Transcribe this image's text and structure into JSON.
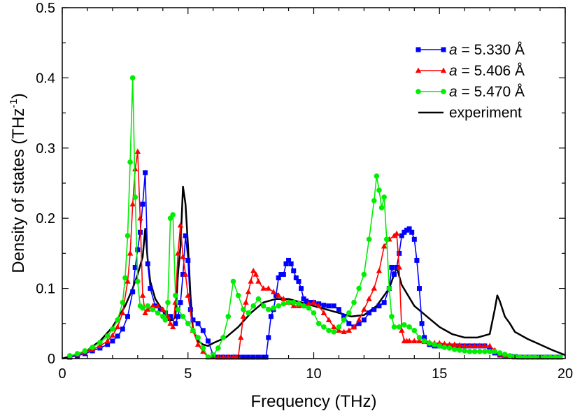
{
  "chart_data": {
    "type": "line",
    "title": "",
    "xlabel": "Frequency (THz)",
    "ylabel_prefix": "Density of states (THz",
    "ylabel_sup": "-1",
    "ylabel_suffix": ")",
    "xlim": [
      0,
      20
    ],
    "ylim": [
      0,
      0.5
    ],
    "xticks": [
      0,
      5,
      10,
      15,
      20
    ],
    "xtick_labels": [
      "0",
      "5",
      "10",
      "15",
      "20"
    ],
    "yticks": [
      0,
      0.1,
      0.2,
      0.3,
      0.4,
      0.5
    ],
    "ytick_labels": [
      "0",
      "0.1",
      "0.2",
      "0.3",
      "0.4",
      "0.5"
    ],
    "grid": false,
    "legend_position": "top-right",
    "series": [
      {
        "name_italic": "a",
        "name_rest": " = 5.330 Å",
        "color": "#0000ff",
        "marker": "square",
        "x": [
          0.3,
          0.6,
          0.9,
          1.2,
          1.5,
          1.8,
          2.0,
          2.2,
          2.4,
          2.6,
          2.8,
          2.9,
          3.0,
          3.1,
          3.2,
          3.3,
          3.4,
          3.5,
          3.7,
          3.9,
          4.1,
          4.3,
          4.5,
          4.6,
          4.7,
          4.8,
          4.9,
          5.0,
          5.1,
          5.2,
          5.4,
          5.6,
          5.8,
          6.0,
          6.2,
          6.4,
          6.6,
          6.8,
          7.0,
          7.2,
          7.4,
          7.6,
          7.8,
          8.0,
          8.1,
          8.2,
          8.3,
          8.4,
          8.5,
          8.6,
          8.7,
          8.8,
          8.9,
          9.0,
          9.1,
          9.2,
          9.3,
          9.4,
          9.5,
          9.6,
          9.7,
          9.8,
          9.9,
          10.0,
          10.2,
          10.4,
          10.6,
          10.8,
          11.0,
          11.2,
          11.4,
          11.6,
          11.8,
          12.0,
          12.2,
          12.4,
          12.6,
          12.8,
          13.0,
          13.1,
          13.2,
          13.3,
          13.4,
          13.5,
          13.6,
          13.7,
          13.8,
          13.9,
          14.0,
          14.1,
          14.2,
          14.3,
          14.4,
          14.6,
          14.8,
          15.0,
          15.2,
          15.4,
          15.6,
          15.8,
          16.0,
          16.2,
          16.4,
          16.6,
          16.8,
          17.0,
          17.2,
          17.4,
          17.6,
          17.8,
          18.0,
          18.2,
          18.4,
          18.6,
          18.8,
          19.0,
          19.2,
          19.4,
          19.6,
          19.8
        ],
        "y": [
          0.002,
          0.004,
          0.007,
          0.011,
          0.015,
          0.02,
          0.025,
          0.032,
          0.042,
          0.06,
          0.095,
          0.13,
          0.155,
          0.18,
          0.22,
          0.265,
          0.135,
          0.1,
          0.075,
          0.07,
          0.065,
          0.06,
          0.05,
          0.06,
          0.08,
          0.12,
          0.175,
          0.14,
          0.07,
          0.055,
          0.05,
          0.04,
          0.025,
          0.005,
          0.002,
          0.002,
          0.002,
          0.002,
          0.002,
          0.002,
          0.002,
          0.002,
          0.002,
          0.002,
          0.002,
          0.03,
          0.06,
          0.07,
          0.09,
          0.115,
          0.12,
          0.12,
          0.135,
          0.14,
          0.135,
          0.125,
          0.115,
          0.11,
          0.1,
          0.085,
          0.082,
          0.08,
          0.08,
          0.08,
          0.078,
          0.076,
          0.075,
          0.075,
          0.07,
          0.06,
          0.05,
          0.045,
          0.05,
          0.055,
          0.065,
          0.07,
          0.075,
          0.08,
          0.1,
          0.13,
          0.12,
          0.13,
          0.15,
          0.175,
          0.18,
          0.183,
          0.185,
          0.18,
          0.17,
          0.14,
          0.1,
          0.05,
          0.03,
          0.02,
          0.018,
          0.018,
          0.018,
          0.018,
          0.018,
          0.018,
          0.018,
          0.018,
          0.018,
          0.018,
          0.018,
          0.012,
          0.008,
          0.005,
          0.004,
          0.003,
          0.003,
          0.002,
          0.002,
          0.002,
          0.002,
          0.002,
          0.002,
          0.002,
          0.002,
          0.002
        ]
      },
      {
        "name_italic": "a",
        "name_rest": " = 5.406 Å",
        "color": "#ff0000",
        "marker": "triangle",
        "x": [
          0.3,
          0.6,
          0.9,
          1.2,
          1.5,
          1.8,
          2.0,
          2.2,
          2.4,
          2.6,
          2.7,
          2.8,
          2.9,
          3.0,
          3.1,
          3.2,
          3.3,
          3.4,
          3.6,
          3.8,
          4.0,
          4.2,
          4.3,
          4.4,
          4.5,
          4.6,
          4.7,
          4.8,
          4.9,
          5.0,
          5.2,
          5.4,
          5.6,
          5.8,
          6.0,
          6.2,
          6.4,
          6.6,
          6.8,
          6.9,
          7.0,
          7.1,
          7.2,
          7.3,
          7.4,
          7.5,
          7.6,
          7.7,
          7.8,
          8.0,
          8.2,
          8.4,
          8.6,
          8.8,
          9.0,
          9.2,
          9.4,
          9.6,
          9.8,
          10.0,
          10.2,
          10.4,
          10.6,
          10.8,
          11.0,
          11.2,
          11.4,
          11.6,
          11.8,
          12.0,
          12.2,
          12.4,
          12.6,
          12.8,
          13.0,
          13.2,
          13.3,
          13.4,
          13.5,
          13.6,
          13.7,
          13.8,
          14.0,
          14.2,
          14.4,
          14.6,
          14.8,
          15.0,
          15.2,
          15.4,
          15.6,
          15.8,
          16.0,
          16.2,
          16.4,
          16.6,
          16.8,
          17.0,
          17.2,
          17.4,
          17.6,
          17.8,
          18.0,
          18.2,
          18.4,
          18.6,
          18.8,
          19.0,
          19.2,
          19.4,
          19.6,
          19.8
        ],
        "y": [
          0.003,
          0.006,
          0.009,
          0.013,
          0.018,
          0.025,
          0.033,
          0.045,
          0.065,
          0.11,
          0.15,
          0.22,
          0.27,
          0.295,
          0.2,
          0.09,
          0.065,
          0.07,
          0.075,
          0.075,
          0.07,
          0.06,
          0.05,
          0.045,
          0.08,
          0.15,
          0.19,
          0.145,
          0.12,
          0.09,
          0.04,
          0.02,
          0.01,
          0.002,
          0.002,
          0.002,
          0.002,
          0.002,
          0.002,
          0.002,
          0.002,
          0.03,
          0.06,
          0.08,
          0.095,
          0.11,
          0.125,
          0.12,
          0.11,
          0.1,
          0.1,
          0.095,
          0.09,
          0.085,
          0.08,
          0.075,
          0.075,
          0.075,
          0.078,
          0.08,
          0.075,
          0.065,
          0.055,
          0.045,
          0.04,
          0.038,
          0.04,
          0.045,
          0.055,
          0.07,
          0.085,
          0.1,
          0.125,
          0.16,
          0.17,
          0.175,
          0.178,
          0.13,
          0.04,
          0.025,
          0.025,
          0.025,
          0.025,
          0.025,
          0.024,
          0.023,
          0.022,
          0.022,
          0.021,
          0.02,
          0.02,
          0.019,
          0.018,
          0.018,
          0.018,
          0.018,
          0.018,
          0.018,
          0.012,
          0.006,
          0.004,
          0.003,
          0.002,
          0.002,
          0.002,
          0.002,
          0.002,
          0.002,
          0.002,
          0.002,
          0.002,
          0.002
        ]
      },
      {
        "name_italic": "a",
        "name_rest": " = 5.470 Å",
        "color": "#00ee00",
        "marker": "circle",
        "x": [
          0.3,
          0.6,
          0.9,
          1.2,
          1.5,
          1.8,
          2.0,
          2.2,
          2.4,
          2.5,
          2.6,
          2.7,
          2.8,
          2.9,
          3.0,
          3.1,
          3.2,
          3.4,
          3.6,
          3.8,
          4.0,
          4.1,
          4.2,
          4.3,
          4.4,
          4.5,
          4.6,
          4.8,
          5.0,
          5.2,
          5.4,
          5.6,
          5.8,
          6.0,
          6.2,
          6.4,
          6.6,
          6.8,
          7.0,
          7.2,
          7.4,
          7.6,
          7.8,
          8.0,
          8.2,
          8.4,
          8.6,
          8.8,
          9.0,
          9.2,
          9.4,
          9.6,
          9.8,
          10.0,
          10.2,
          10.4,
          10.6,
          10.8,
          11.0,
          11.2,
          11.4,
          11.6,
          11.8,
          12.0,
          12.2,
          12.4,
          12.5,
          12.6,
          12.7,
          12.8,
          12.9,
          13.0,
          13.1,
          13.2,
          13.4,
          13.6,
          13.8,
          14.0,
          14.2,
          14.4,
          14.6,
          14.8,
          15.0,
          15.2,
          15.4,
          15.6,
          15.8,
          16.0,
          16.2,
          16.4,
          16.6,
          16.8,
          17.0,
          17.2,
          17.4,
          17.6,
          17.8,
          18.0,
          18.2,
          18.4,
          18.6,
          18.8,
          19.0,
          19.2,
          19.4,
          19.6,
          19.8
        ],
        "y": [
          0.004,
          0.007,
          0.011,
          0.016,
          0.023,
          0.032,
          0.042,
          0.055,
          0.08,
          0.115,
          0.175,
          0.28,
          0.4,
          0.23,
          0.11,
          0.075,
          0.072,
          0.075,
          0.07,
          0.065,
          0.06,
          0.055,
          0.08,
          0.2,
          0.205,
          0.09,
          0.07,
          0.06,
          0.05,
          0.04,
          0.03,
          0.015,
          0.002,
          0.005,
          0.015,
          0.03,
          0.06,
          0.11,
          0.09,
          0.07,
          0.065,
          0.075,
          0.085,
          0.075,
          0.07,
          0.072,
          0.075,
          0.078,
          0.08,
          0.08,
          0.078,
          0.075,
          0.072,
          0.065,
          0.05,
          0.045,
          0.04,
          0.038,
          0.045,
          0.055,
          0.065,
          0.08,
          0.1,
          0.12,
          0.17,
          0.225,
          0.26,
          0.24,
          0.215,
          0.23,
          0.17,
          0.1,
          0.06,
          0.045,
          0.045,
          0.048,
          0.045,
          0.04,
          0.03,
          0.025,
          0.022,
          0.02,
          0.018,
          0.016,
          0.015,
          0.013,
          0.012,
          0.011,
          0.01,
          0.01,
          0.01,
          0.01,
          0.01,
          0.01,
          0.008,
          0.006,
          0.004,
          0.003,
          0.002,
          0.002,
          0.002,
          0.002,
          0.002,
          0.002,
          0.002,
          0.002,
          0.002
        ]
      },
      {
        "name_italic": "",
        "name_rest": "experiment",
        "color": "#000000",
        "marker": "none",
        "x": [
          0.0,
          0.5,
          1.0,
          1.5,
          2.0,
          2.5,
          2.8,
          3.0,
          3.2,
          3.3,
          3.4,
          3.5,
          3.7,
          4.0,
          4.2,
          4.4,
          4.5,
          4.6,
          4.7,
          4.8,
          4.9,
          5.0,
          5.1,
          5.2,
          5.4,
          5.6,
          5.8,
          6.0,
          6.5,
          7.0,
          7.5,
          8.0,
          8.5,
          9.0,
          9.5,
          10.0,
          10.5,
          11.0,
          11.5,
          12.0,
          12.5,
          13.0,
          13.2,
          13.3,
          13.5,
          14.0,
          14.5,
          15.0,
          15.5,
          16.0,
          16.5,
          17.0,
          17.2,
          17.3,
          17.4,
          17.6,
          17.8,
          18.0,
          18.5,
          19.0,
          19.5,
          20.0
        ],
        "y": [
          0.0,
          0.005,
          0.012,
          0.025,
          0.045,
          0.075,
          0.1,
          0.12,
          0.145,
          0.185,
          0.14,
          0.11,
          0.085,
          0.068,
          0.055,
          0.055,
          0.06,
          0.12,
          0.16,
          0.245,
          0.22,
          0.16,
          0.09,
          0.04,
          0.025,
          0.02,
          0.018,
          0.022,
          0.03,
          0.045,
          0.065,
          0.08,
          0.085,
          0.085,
          0.08,
          0.075,
          0.07,
          0.065,
          0.06,
          0.062,
          0.075,
          0.1,
          0.12,
          0.13,
          0.105,
          0.075,
          0.06,
          0.045,
          0.035,
          0.03,
          0.03,
          0.035,
          0.07,
          0.09,
          0.082,
          0.06,
          0.05,
          0.038,
          0.028,
          0.02,
          0.012,
          0.005
        ]
      }
    ]
  }
}
